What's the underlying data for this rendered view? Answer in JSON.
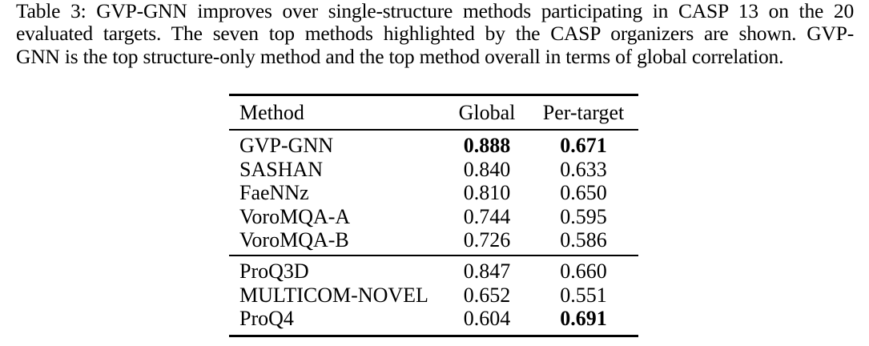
{
  "colors": {
    "background": "#ffffff",
    "text": "#000000",
    "rule": "#000000"
  },
  "caption": {
    "lines": [
      "Table 3: GVP-GNN improves over single-structure methods participating in CASP 13 on the 20",
      "evaluated targets. The seven top methods highlighted by the CASP organizers are shown. GVP-",
      "GNN is the top structure-only method and the top method overall in terms of global correlation."
    ]
  },
  "table": {
    "columns": [
      "Method",
      "Global",
      "Per-target"
    ],
    "groups": [
      {
        "rows": [
          {
            "method": "GVP-GNN",
            "global": "0.888",
            "per_target": "0.671",
            "bold_cells": [
              "global",
              "per_target"
            ]
          },
          {
            "method": "SASHAN",
            "global": "0.840",
            "per_target": "0.633",
            "bold_cells": []
          },
          {
            "method": "FaeNNz",
            "global": "0.810",
            "per_target": "0.650",
            "bold_cells": []
          },
          {
            "method": "VoroMQA-A",
            "global": "0.744",
            "per_target": "0.595",
            "bold_cells": []
          },
          {
            "method": "VoroMQA-B",
            "global": "0.726",
            "per_target": "0.586",
            "bold_cells": []
          }
        ]
      },
      {
        "rows": [
          {
            "method": "ProQ3D",
            "global": "0.847",
            "per_target": "0.660",
            "bold_cells": []
          },
          {
            "method": "MULTICOM-NOVEL",
            "global": "0.652",
            "per_target": "0.551",
            "bold_cells": []
          },
          {
            "method": "ProQ4",
            "global": "0.604",
            "per_target": "0.691",
            "bold_cells": [
              "per_target"
            ]
          }
        ]
      }
    ]
  }
}
